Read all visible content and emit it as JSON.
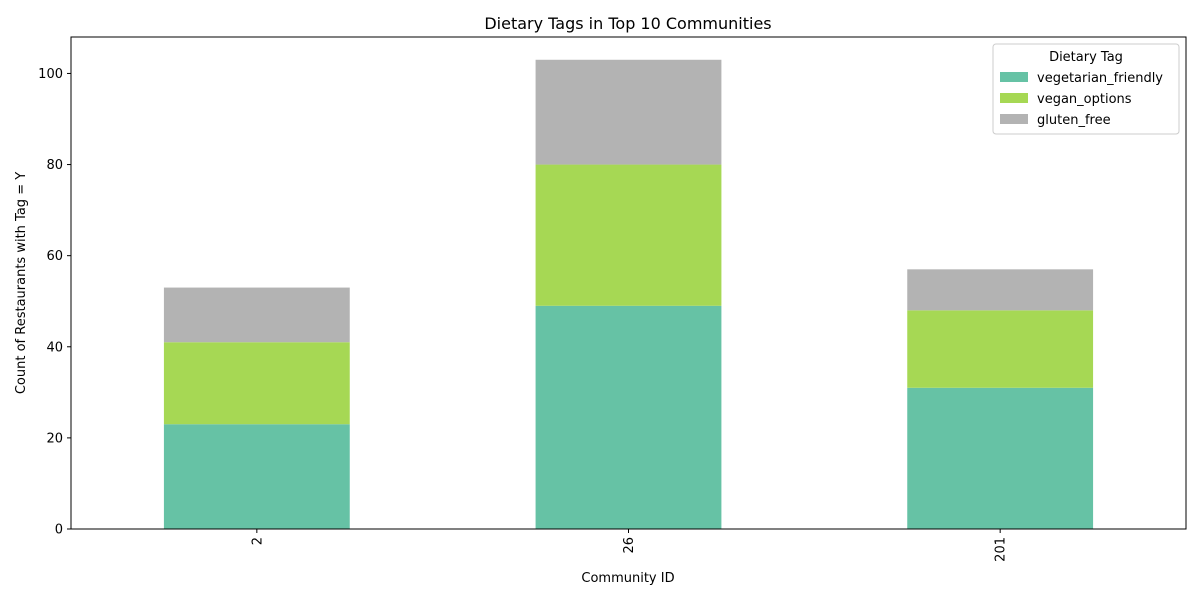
{
  "chart_data": {
    "type": "bar",
    "stacked": true,
    "title": "Dietary Tags in Top 10 Communities",
    "xlabel": "Community ID",
    "ylabel": "Count of Restaurants with Tag = Y",
    "categories": [
      "2",
      "26",
      "201"
    ],
    "series": [
      {
        "name": "vegetarian_friendly",
        "values": [
          23,
          49,
          31
        ],
        "color": "#66c2a5"
      },
      {
        "name": "vegan_options",
        "values": [
          18,
          31,
          17
        ],
        "color": "#a6d854"
      },
      {
        "name": "gluten_free",
        "values": [
          12,
          23,
          9
        ],
        "color": "#b3b3b3"
      }
    ],
    "ylim": [
      0,
      108
    ],
    "yticks": [
      0,
      20,
      40,
      60,
      80,
      100
    ],
    "xtick_rotation": 90,
    "grid": false,
    "legend": {
      "title": "Dietary Tag",
      "placement": "top-right"
    }
  }
}
